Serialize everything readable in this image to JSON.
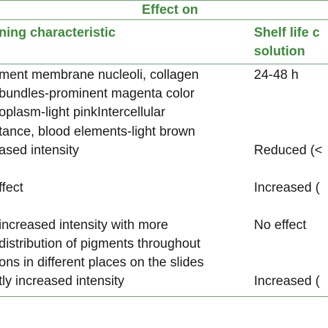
{
  "header": {
    "effect_on": "Effect on",
    "characteristic": "ning characteristic",
    "shelf_line1": "Shelf life c",
    "shelf_line2": "solution"
  },
  "rows": [
    {
      "characteristic": [
        "ment membrane nucleoli, collagen",
        "bundles-prominent magenta color",
        "oplasm-light pinkIntercellular",
        "tance, blood elements-light brown"
      ],
      "shelf_life": "24-48 h"
    },
    {
      "characteristic": [
        "ased intensity"
      ],
      "shelf_life": "Reduced (<"
    },
    {
      "characteristic": [
        "ffect"
      ],
      "shelf_life": "Increased ("
    },
    {
      "characteristic": [
        "increased intensity with more",
        "distribution of pigments throughout",
        "ons in different places on the slides"
      ],
      "shelf_life": "No effect"
    },
    {
      "characteristic": [
        "tly increased intensity"
      ],
      "shelf_life": "Increased ("
    }
  ]
}
